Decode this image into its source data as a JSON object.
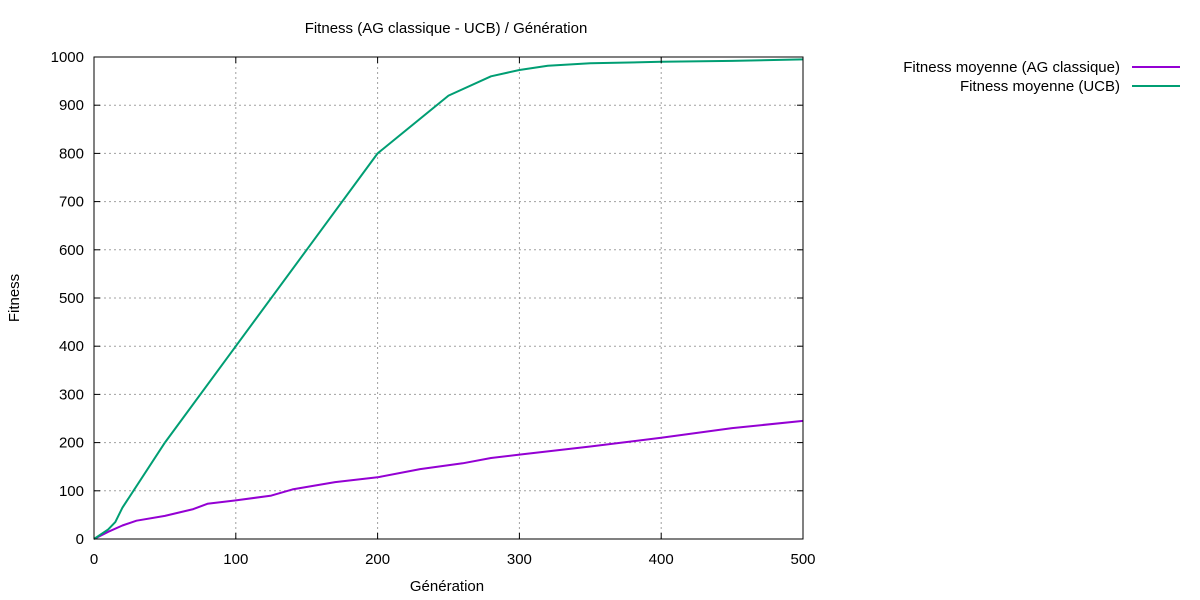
{
  "chart_data": {
    "type": "line",
    "title": "Fitness (AG classique - UCB) / Génération",
    "xlabel": "Génération",
    "ylabel": "Fitness",
    "xlim": [
      0,
      500
    ],
    "ylim": [
      0,
      1000
    ],
    "xticks": [
      "0",
      "100",
      "200",
      "300",
      "400",
      "500"
    ],
    "yticks": [
      "0",
      "100",
      "200",
      "300",
      "400",
      "500",
      "600",
      "700",
      "800",
      "900",
      "1000"
    ],
    "grid": true,
    "legend_position": "outside-top-right",
    "series": [
      {
        "name": "Fitness moyenne (AG classique)",
        "color": "#9400d3",
        "x": [
          0,
          10,
          20,
          30,
          50,
          70,
          80,
          100,
          125,
          140,
          170,
          200,
          230,
          260,
          280,
          300,
          350,
          400,
          450,
          500
        ],
        "y": [
          0,
          15,
          28,
          38,
          48,
          62,
          73,
          80,
          90,
          103,
          118,
          128,
          145,
          157,
          168,
          175,
          192,
          210,
          230,
          245
        ]
      },
      {
        "name": "Fitness moyenne (UCB)",
        "color": "#009e73",
        "x": [
          0,
          10,
          15,
          20,
          50,
          100,
          150,
          200,
          250,
          280,
          300,
          320,
          350,
          400,
          450,
          500
        ],
        "y": [
          0,
          20,
          35,
          65,
          200,
          400,
          600,
          800,
          920,
          960,
          973,
          982,
          987,
          990,
          992,
          995
        ]
      }
    ]
  }
}
